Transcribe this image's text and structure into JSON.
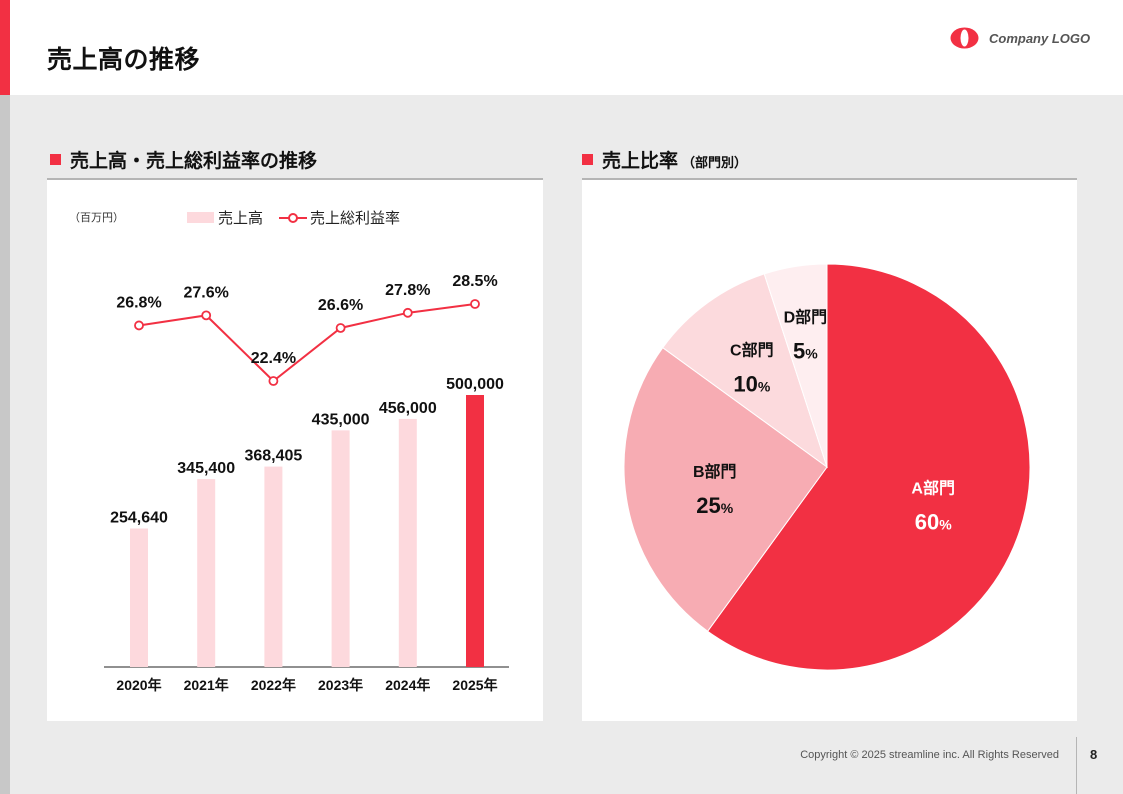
{
  "page": {
    "title": "売上高の推移",
    "logo_text": "Company LOGO",
    "copyright": "Copyright © 2025 streamline inc. All Rights Reserved",
    "page_number": "8"
  },
  "colors": {
    "accent": "#f23043",
    "bar_light": "#fdd9dd",
    "pie_a": "#f23043",
    "pie_b": "#f7acb3",
    "pie_c": "#fcdadd",
    "pie_d": "#feeef0"
  },
  "left_section": {
    "title": "売上高・売上総利益率の推移",
    "unit": "（百万円）",
    "legend_bar": "売上高",
    "legend_line": "売上総利益率"
  },
  "right_section": {
    "title": "売上比率",
    "subtitle": "（部門別）"
  },
  "chart_data": [
    {
      "type": "bar",
      "categories": [
        "2020年",
        "2021年",
        "2022年",
        "2023年",
        "2024年",
        "2025年"
      ],
      "series": [
        {
          "name": "売上高",
          "values": [
            254640,
            345400,
            368405,
            435000,
            456000,
            500000
          ],
          "labels": [
            "254,640",
            "345,400",
            "368,405",
            "435,000",
            "456,000",
            "500,000"
          ],
          "highlight_index": 5
        },
        {
          "name": "売上総利益率",
          "type": "line",
          "values": [
            26.8,
            27.6,
            22.4,
            26.6,
            27.8,
            28.5
          ],
          "labels": [
            "26.8%",
            "27.6%",
            "22.4%",
            "26.6%",
            "27.8%",
            "28.5%"
          ]
        }
      ],
      "legend": "top-left",
      "grid": false
    },
    {
      "type": "pie",
      "labels": [
        "A部門",
        "B部門",
        "C部門",
        "D部門"
      ],
      "values": [
        60,
        25,
        10,
        5
      ],
      "value_numbers": [
        "60",
        "25",
        "10",
        "5"
      ],
      "value_unit": "%"
    }
  ]
}
